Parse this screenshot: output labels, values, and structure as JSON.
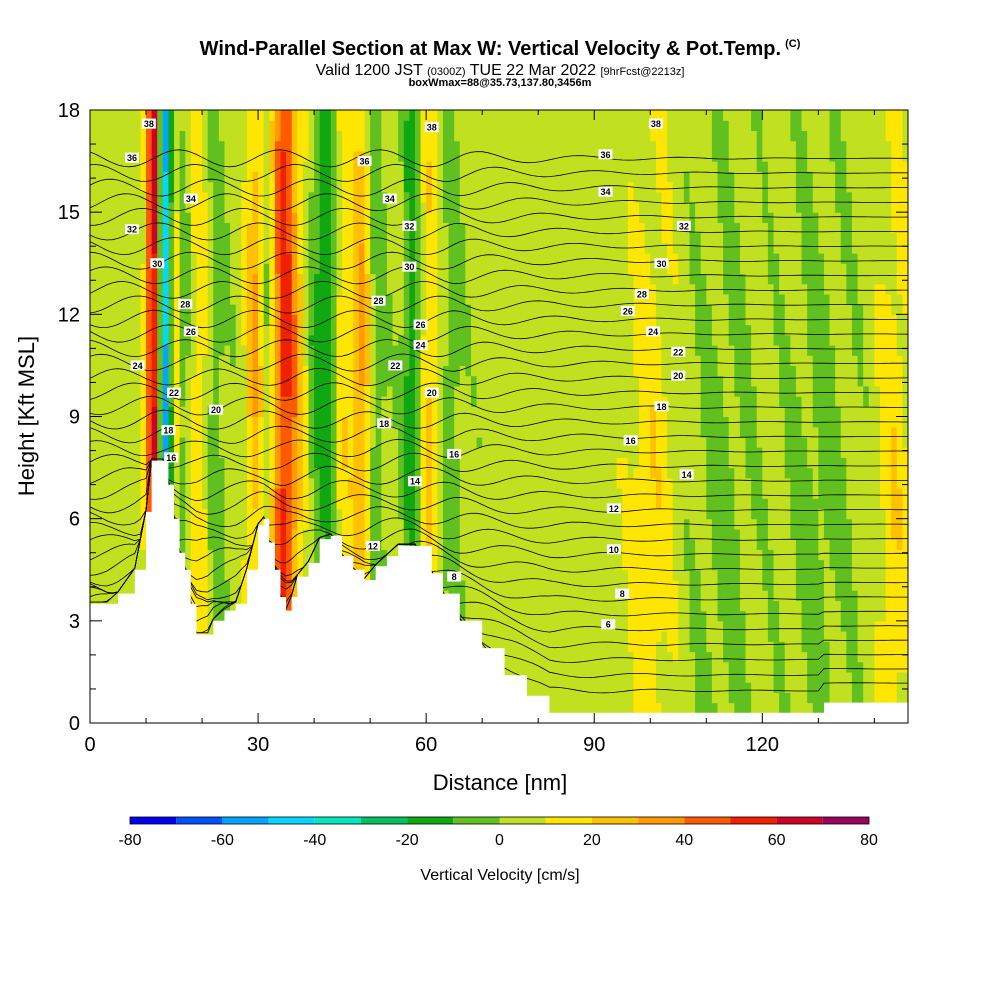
{
  "chart_data": {
    "type": "heatmap",
    "title": "Wind-Parallel Section at Max W: Vertical Velocity & Pot.Temp.",
    "title_mark": "(C)",
    "subtitle_main": "Valid 1200 JST",
    "subtitle_utc": "(0300Z)",
    "subtitle_date": "TUE 22 Mar 2022",
    "subtitle_fcst": "[9hrFcst@2213z]",
    "subtitle2": "boxWmax=88@35.73,137.80,3456m",
    "xlabel": "Distance [nm]",
    "ylabel": "Height [Kft MSL]",
    "xlim": [
      0,
      146
    ],
    "ylim": [
      0,
      18
    ],
    "x_ticks": [
      0,
      30,
      60,
      90,
      120
    ],
    "y_ticks": [
      0,
      3,
      6,
      9,
      12,
      15,
      18
    ],
    "colorbar": {
      "label": "Vertical Velocity [cm/s]",
      "ticks": [
        -80,
        -60,
        -40,
        -20,
        0,
        20,
        40,
        60,
        80
      ],
      "bounds": [
        -80,
        -70,
        -60,
        -50,
        -40,
        -30,
        -20,
        -10,
        0,
        10,
        20,
        30,
        40,
        50,
        60,
        70,
        80
      ],
      "colors": [
        "#0000f0",
        "#0050ff",
        "#00a6ff",
        "#00d8ff",
        "#00e8c0",
        "#00c060",
        "#10a810",
        "#60c020",
        "#c0e020",
        "#ffe600",
        "#ffc000",
        "#ff9a00",
        "#ff5a00",
        "#f02000",
        "#d0002a",
        "#9a0060",
        "#580088"
      ]
    },
    "terrain_top_kft": [
      {
        "x": 0,
        "y": 3.5
      },
      {
        "x": 3,
        "y": 3.5
      },
      {
        "x": 5,
        "y": 3.8
      },
      {
        "x": 8,
        "y": 4.5
      },
      {
        "x": 10,
        "y": 6.2
      },
      {
        "x": 11,
        "y": 7.7
      },
      {
        "x": 13,
        "y": 7.7
      },
      {
        "x": 14,
        "y": 7.0
      },
      {
        "x": 15,
        "y": 6.0
      },
      {
        "x": 16,
        "y": 5.0
      },
      {
        "x": 17,
        "y": 4.5
      },
      {
        "x": 18,
        "y": 3.5
      },
      {
        "x": 19,
        "y": 2.6
      },
      {
        "x": 21,
        "y": 2.6
      },
      {
        "x": 22,
        "y": 3.0
      },
      {
        "x": 24,
        "y": 3.3
      },
      {
        "x": 26,
        "y": 3.5
      },
      {
        "x": 28,
        "y": 4.5
      },
      {
        "x": 30,
        "y": 5.8
      },
      {
        "x": 31,
        "y": 6.0
      },
      {
        "x": 32,
        "y": 5.3
      },
      {
        "x": 33,
        "y": 4.5
      },
      {
        "x": 34,
        "y": 3.7
      },
      {
        "x": 35,
        "y": 3.3
      },
      {
        "x": 36,
        "y": 3.7
      },
      {
        "x": 37,
        "y": 4.3
      },
      {
        "x": 39,
        "y": 4.7
      },
      {
        "x": 41,
        "y": 5.4
      },
      {
        "x": 43,
        "y": 5.5
      },
      {
        "x": 45,
        "y": 4.9
      },
      {
        "x": 47,
        "y": 4.5
      },
      {
        "x": 49,
        "y": 4.2
      },
      {
        "x": 51,
        "y": 4.6
      },
      {
        "x": 53,
        "y": 4.9
      },
      {
        "x": 55,
        "y": 5.2
      },
      {
        "x": 58,
        "y": 5.2
      },
      {
        "x": 61,
        "y": 4.4
      },
      {
        "x": 63,
        "y": 3.8
      },
      {
        "x": 66,
        "y": 3.0
      },
      {
        "x": 70,
        "y": 2.2
      },
      {
        "x": 74,
        "y": 1.4
      },
      {
        "x": 78,
        "y": 0.8
      },
      {
        "x": 82,
        "y": 0.3
      },
      {
        "x": 130,
        "y": 0.3
      },
      {
        "x": 131,
        "y": 0.6
      },
      {
        "x": 146,
        "y": 0.6
      }
    ],
    "w_columns": [
      {
        "x": 11.5,
        "w": 70,
        "width": 1.4
      },
      {
        "x": 13.3,
        "w": -70,
        "width": 1.4
      },
      {
        "x": 15.0,
        "w": 30,
        "width": 1.2
      },
      {
        "x": 16.5,
        "w": -15,
        "width": 1.2
      },
      {
        "x": 19.5,
        "w": 15,
        "width": 1.8
      },
      {
        "x": 22.5,
        "w": -10,
        "width": 1.8
      },
      {
        "x": 29.5,
        "w": 30,
        "width": 1.6
      },
      {
        "x": 31.5,
        "w": -12,
        "width": 1.4
      },
      {
        "x": 34.5,
        "w": 45,
        "width": 2.0
      },
      {
        "x": 37.0,
        "w": 20,
        "width": 2.0
      },
      {
        "x": 40.0,
        "w": -15,
        "width": 1.6
      },
      {
        "x": 42.5,
        "w": -25,
        "width": 1.6
      },
      {
        "x": 45.0,
        "w": 15,
        "width": 1.8
      },
      {
        "x": 48.5,
        "w": 30,
        "width": 1.8
      },
      {
        "x": 51.0,
        "w": -15,
        "width": 1.6
      },
      {
        "x": 57.5,
        "w": -25,
        "width": 1.6
      },
      {
        "x": 60.5,
        "w": 20,
        "width": 1.8
      },
      {
        "x": 64.5,
        "w": -10,
        "width": 2.0
      },
      {
        "x": 100.0,
        "w": 15,
        "width": 4.0
      },
      {
        "x": 113.0,
        "w": -8,
        "width": 5.0
      },
      {
        "x": 130.0,
        "w": -8,
        "width": 6.0
      },
      {
        "x": 143.5,
        "w": 15,
        "width": 3.0
      }
    ],
    "theta_labels": [
      {
        "value": "38",
        "x": 10.5,
        "y": 17.6
      },
      {
        "value": "38",
        "x": 61,
        "y": 17.5
      },
      {
        "value": "38",
        "x": 101,
        "y": 17.6
      },
      {
        "value": "36",
        "x": 7.5,
        "y": 16.6
      },
      {
        "value": "36",
        "x": 49,
        "y": 16.5
      },
      {
        "value": "36",
        "x": 92,
        "y": 16.7
      },
      {
        "value": "34",
        "x": 18,
        "y": 15.4
      },
      {
        "value": "34",
        "x": 53.5,
        "y": 15.4
      },
      {
        "value": "34",
        "x": 92,
        "y": 15.6
      },
      {
        "value": "32",
        "x": 7.5,
        "y": 14.5
      },
      {
        "value": "32",
        "x": 57,
        "y": 14.6
      },
      {
        "value": "32",
        "x": 106,
        "y": 14.6
      },
      {
        "value": "30",
        "x": 12,
        "y": 13.5
      },
      {
        "value": "30",
        "x": 57,
        "y": 13.4
      },
      {
        "value": "30",
        "x": 102,
        "y": 13.5
      },
      {
        "value": "28",
        "x": 17,
        "y": 12.3
      },
      {
        "value": "28",
        "x": 51.5,
        "y": 12.4
      },
      {
        "value": "28",
        "x": 98.5,
        "y": 12.6
      },
      {
        "value": "26",
        "x": 18,
        "y": 11.5
      },
      {
        "value": "26",
        "x": 59,
        "y": 11.7
      },
      {
        "value": "26",
        "x": 96,
        "y": 12.1
      },
      {
        "value": "24",
        "x": 8.5,
        "y": 10.5
      },
      {
        "value": "24",
        "x": 59,
        "y": 11.1
      },
      {
        "value": "24",
        "x": 100.5,
        "y": 11.5
      },
      {
        "value": "22",
        "x": 15,
        "y": 9.7
      },
      {
        "value": "22",
        "x": 54.5,
        "y": 10.5
      },
      {
        "value": "22",
        "x": 105,
        "y": 10.9
      },
      {
        "value": "20",
        "x": 22.5,
        "y": 9.2
      },
      {
        "value": "20",
        "x": 61,
        "y": 9.7
      },
      {
        "value": "20",
        "x": 105,
        "y": 10.2
      },
      {
        "value": "18",
        "x": 14,
        "y": 8.6
      },
      {
        "value": "18",
        "x": 52.5,
        "y": 8.8
      },
      {
        "value": "18",
        "x": 102,
        "y": 9.3
      },
      {
        "value": "16",
        "x": 14.5,
        "y": 7.8
      },
      {
        "value": "16",
        "x": 65,
        "y": 7.9
      },
      {
        "value": "16",
        "x": 96.5,
        "y": 8.3
      },
      {
        "value": "14",
        "x": 58,
        "y": 7.1
      },
      {
        "value": "14",
        "x": 106.5,
        "y": 7.3
      },
      {
        "value": "12",
        "x": 50.5,
        "y": 5.2
      },
      {
        "value": "12",
        "x": 93.5,
        "y": 6.3
      },
      {
        "value": "10",
        "x": 93.5,
        "y": 5.1
      },
      {
        "value": "8",
        "x": 65,
        "y": 4.3
      },
      {
        "value": "8",
        "x": 95,
        "y": 3.8
      },
      {
        "value": "6",
        "x": 92.5,
        "y": 2.9
      }
    ]
  }
}
